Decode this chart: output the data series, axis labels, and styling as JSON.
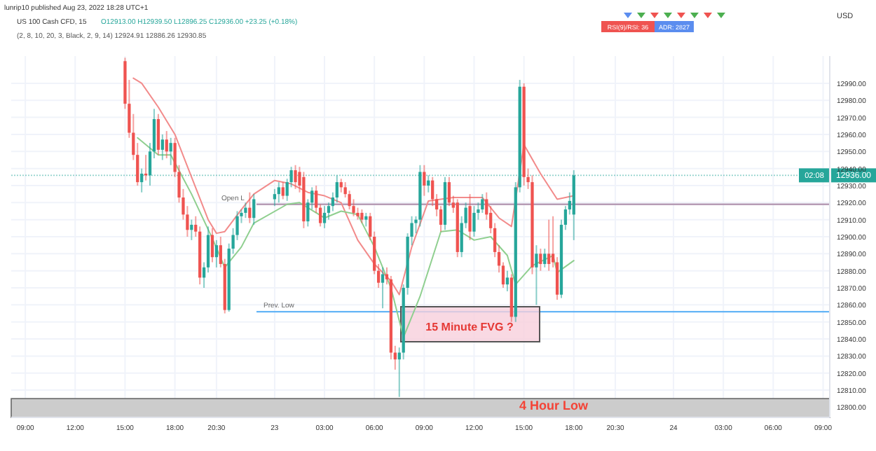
{
  "chart_data": {
    "type": "candlestick",
    "title": "US 100 Cash CFD, 15",
    "subtitle": "O12913.00 H12939.50 L12896.25 C12936.00 +23.25 (+0.18%)",
    "ylabel": "USD",
    "annotations": [
      "lunrip10 published Aug 23, 2022 18:28 UTC+1",
      "(2, 8, 10, 20, 3, Black, 2, 9, 14)  12924.91  12886.26  12930.85",
      "RSI(9)/RSI: 36",
      "ADR: 2827",
      "02:08",
      "15 Minute FVG ?"
    ],
    "x": [
      "2022-08-22T15:00",
      "2022-08-22T15:15",
      "2022-08-22T15:30",
      "2022-08-22T15:45",
      "2022-08-22T16:00",
      "2022-08-22T16:15",
      "2022-08-22T16:30",
      "2022-08-22T16:45",
      "2022-08-22T17:00",
      "2022-08-22T17:15",
      "2022-08-22T17:30",
      "2022-08-22T17:45",
      "2022-08-22T18:00",
      "2022-08-22T18:15",
      "2022-08-22T18:30",
      "2022-08-22T18:45",
      "2022-08-22T19:00",
      "2022-08-22T19:15",
      "2022-08-22T19:30",
      "2022-08-22T19:45",
      "2022-08-22T20:00",
      "2022-08-22T20:15",
      "2022-08-22T20:30",
      "2022-08-22T20:45",
      "2022-08-22T21:00",
      "2022-08-22T21:15",
      "2022-08-22T21:30",
      "2022-08-22T21:45",
      "2022-08-22T22:00",
      "2022-08-22T22:15",
      "2022-08-22T22:30",
      "2022-08-22T22:45",
      "2022-08-23T00:00",
      "2022-08-23T00:15",
      "2022-08-23T00:30",
      "2022-08-23T00:45",
      "2022-08-23T01:00",
      "2022-08-23T01:15",
      "2022-08-23T01:30",
      "2022-08-23T01:45",
      "2022-08-23T02:00",
      "2022-08-23T02:15",
      "2022-08-23T02:30",
      "2022-08-23T02:45",
      "2022-08-23T03:00",
      "2022-08-23T03:15",
      "2022-08-23T03:30",
      "2022-08-23T03:45",
      "2022-08-23T04:00",
      "2022-08-23T04:15",
      "2022-08-23T04:30",
      "2022-08-23T04:45",
      "2022-08-23T05:00",
      "2022-08-23T05:15",
      "2022-08-23T05:30",
      "2022-08-23T05:45",
      "2022-08-23T06:00",
      "2022-08-23T06:15",
      "2022-08-23T06:30",
      "2022-08-23T06:45",
      "2022-08-23T07:00",
      "2022-08-23T07:15",
      "2022-08-23T07:30",
      "2022-08-23T07:45",
      "2022-08-23T08:00",
      "2022-08-23T08:15",
      "2022-08-23T08:30",
      "2022-08-23T08:45",
      "2022-08-23T09:00",
      "2022-08-23T09:15",
      "2022-08-23T09:30",
      "2022-08-23T09:45",
      "2022-08-23T10:00",
      "2022-08-23T10:15",
      "2022-08-23T10:30",
      "2022-08-23T10:45",
      "2022-08-23T11:00",
      "2022-08-23T11:15",
      "2022-08-23T11:30",
      "2022-08-23T11:45",
      "2022-08-23T12:00",
      "2022-08-23T12:15",
      "2022-08-23T12:30",
      "2022-08-23T12:45",
      "2022-08-23T13:00",
      "2022-08-23T13:15",
      "2022-08-23T13:30",
      "2022-08-23T13:45",
      "2022-08-23T14:00",
      "2022-08-23T14:15",
      "2022-08-23T14:30",
      "2022-08-23T14:45",
      "2022-08-23T15:00",
      "2022-08-23T15:15",
      "2022-08-23T15:30",
      "2022-08-23T15:45",
      "2022-08-23T16:00",
      "2022-08-23T16:15",
      "2022-08-23T16:30",
      "2022-08-23T16:45",
      "2022-08-23T17:00",
      "2022-08-23T17:15",
      "2022-08-23T17:30",
      "2022-08-23T17:45",
      "2022-08-23T18:00"
    ],
    "ohlc": [
      [
        13003,
        13005,
        12975,
        12978
      ],
      [
        12978,
        12992,
        12958,
        12961
      ],
      [
        12961,
        12972,
        12945,
        12948
      ],
      [
        12948,
        12955,
        12930,
        12932
      ],
      [
        12932,
        12940,
        12926,
        12937
      ],
      [
        12937,
        12948,
        12933,
        12936
      ],
      [
        12936,
        12955,
        12930,
        12950
      ],
      [
        12950,
        12975,
        12946,
        12969
      ],
      [
        12969,
        12972,
        12948,
        12951
      ],
      [
        12951,
        12960,
        12945,
        12957
      ],
      [
        12957,
        12962,
        12946,
        12950
      ],
      [
        12950,
        12958,
        12942,
        12955
      ],
      [
        12955,
        12958,
        12935,
        12938
      ],
      [
        12938,
        12942,
        12920,
        12923
      ],
      [
        12923,
        12928,
        12910,
        12913
      ],
      [
        12913,
        12918,
        12900,
        12904
      ],
      [
        12904,
        12910,
        12898,
        12907
      ],
      [
        12907,
        12912,
        12900,
        12903
      ],
      [
        12903,
        12906,
        12872,
        12876
      ],
      [
        12876,
        12885,
        12870,
        12882
      ],
      [
        12882,
        12906,
        12879,
        12901
      ],
      [
        12901,
        12905,
        12885,
        12888
      ],
      [
        12888,
        12898,
        12882,
        12895
      ],
      [
        12895,
        12900,
        12882,
        12884
      ],
      [
        12884,
        12887,
        12855,
        12857
      ],
      [
        12857,
        12896,
        12856,
        12893
      ],
      [
        12893,
        12905,
        12890,
        12901
      ],
      [
        12901,
        12915,
        12898,
        12912
      ],
      [
        12912,
        12916,
        12908,
        12914
      ],
      [
        12914,
        12920,
        12911,
        12917
      ],
      [
        12917,
        12926,
        12908,
        12911
      ],
      [
        12911,
        12925,
        12907,
        12922
      ],
      [
        12922,
        12928,
        12918,
        12925
      ],
      [
        12925,
        12932,
        12920,
        12929
      ],
      [
        12929,
        12932,
        12922,
        12924
      ],
      [
        12924,
        12934,
        12921,
        12932
      ],
      [
        12932,
        12941,
        12929,
        12939
      ],
      [
        12939,
        12942,
        12928,
        12932
      ],
      [
        12938,
        12941,
        12926,
        12930
      ],
      [
        12935,
        12938,
        12905,
        12909
      ],
      [
        12909,
        12922,
        12906,
        12920
      ],
      [
        12920,
        12929,
        12916,
        12927
      ],
      [
        12927,
        12930,
        12914,
        12917
      ],
      [
        12917,
        12919,
        12906,
        12908
      ],
      [
        12908,
        12918,
        12905,
        12914
      ],
      [
        12914,
        12920,
        12910,
        12918
      ],
      [
        12918,
        12926,
        12915,
        12923
      ],
      [
        12923,
        12936,
        12920,
        12932
      ],
      [
        12932,
        12934,
        12926,
        12929
      ],
      [
        12929,
        12932,
        12923,
        12925
      ],
      [
        12925,
        12927,
        12916,
        12918
      ],
      [
        12918,
        12922,
        12912,
        12914
      ],
      [
        12914,
        12917,
        12910,
        12912
      ],
      [
        12914,
        12916,
        12908,
        12910
      ],
      [
        12910,
        12914,
        12906,
        12912
      ],
      [
        12912,
        12914,
        12898,
        12900
      ],
      [
        12900,
        12903,
        12878,
        12880
      ],
      [
        12880,
        12884,
        12870,
        12873
      ],
      [
        12873,
        12882,
        12858,
        12878
      ],
      [
        12878,
        12882,
        12872,
        12875
      ],
      [
        12875,
        12877,
        12828,
        12832
      ],
      [
        12832,
        12836,
        12822,
        12828
      ],
      [
        12828,
        12835,
        12806,
        12832
      ],
      [
        12832,
        12872,
        12828,
        12870
      ],
      [
        12870,
        12902,
        12866,
        12900
      ],
      [
        12900,
        12912,
        12895,
        12908
      ],
      [
        12908,
        12912,
        12902,
        12910
      ],
      [
        12910,
        12942,
        12906,
        12938
      ],
      [
        12938,
        12942,
        12924,
        12930
      ],
      [
        12930,
        12936,
        12926,
        12933
      ],
      [
        12933,
        12935,
        12918,
        12922
      ],
      [
        12922,
        12925,
        12912,
        12916
      ],
      [
        12916,
        12918,
        12903,
        12907
      ],
      [
        12907,
        12935,
        12904,
        12932
      ],
      [
        12932,
        12935,
        12918,
        12920
      ],
      [
        12920,
        12924,
        12914,
        12917
      ],
      [
        12920,
        12922,
        12888,
        12891
      ],
      [
        12891,
        12912,
        12888,
        12908
      ],
      [
        12908,
        12920,
        12905,
        12917
      ],
      [
        12918,
        12925,
        12898,
        12903
      ],
      [
        12903,
        12918,
        12900,
        12914
      ],
      [
        12914,
        12920,
        12910,
        12916
      ],
      [
        12916,
        12925,
        12914,
        12922
      ],
      [
        12922,
        12926,
        12910,
        12913
      ],
      [
        12914,
        12918,
        12902,
        12905
      ],
      [
        12905,
        12908,
        12888,
        12891
      ],
      [
        12891,
        12895,
        12879,
        12883
      ],
      [
        12883,
        12885,
        12870,
        12872
      ],
      [
        12872,
        12880,
        12868,
        12876
      ],
      [
        12876,
        12878,
        12850,
        12853
      ],
      [
        12853,
        12932,
        12850,
        12929
      ],
      [
        12929,
        12992,
        12926,
        12988
      ],
      [
        12988,
        12990,
        12930,
        12935
      ],
      [
        12935,
        12940,
        12928,
        12932
      ],
      [
        12932,
        12936,
        12878,
        12882
      ],
      [
        12882,
        12895,
        12860,
        12890
      ],
      [
        12890,
        12893,
        12880,
        12884
      ],
      [
        12884,
        12893,
        12882,
        12890
      ],
      [
        12890,
        12910,
        12880,
        12884
      ],
      [
        12890,
        12912,
        12882,
        12885
      ],
      [
        12885,
        12888,
        12863,
        12866
      ],
      [
        12866,
        12910,
        12864,
        12907
      ],
      [
        12907,
        12918,
        12904,
        12916
      ],
      [
        12916,
        12926,
        12913,
        12921
      ],
      [
        12913,
        12939,
        12898,
        12936
      ]
    ],
    "series": [
      {
        "type": "line",
        "color": "#f28b8b",
        "x": [
          "2022-08-22T15:30",
          "2022-08-22T16:00",
          "2022-08-22T17:00",
          "2022-08-22T18:00",
          "2022-08-22T19:00",
          "2022-08-22T20:00",
          "2022-08-22T20:30",
          "2022-08-22T21:00",
          "2022-08-22T22:00",
          "2022-08-22T22:45",
          "2022-08-23T00:00",
          "2022-08-23T01:00",
          "2022-08-23T02:00",
          "2022-08-23T03:00",
          "2022-08-23T04:00",
          "2022-08-23T05:00",
          "2022-08-23T06:00",
          "2022-08-23T07:00",
          "2022-08-23T07:30",
          "2022-08-23T08:15",
          "2022-08-23T09:15",
          "2022-08-23T10:45",
          "2022-08-23T12:30",
          "2022-08-23T13:30",
          "2022-08-23T14:15",
          "2022-08-23T15:00",
          "2022-08-23T16:00",
          "2022-08-23T17:00",
          "2022-08-23T18:00"
        ],
        "values": [
          12993,
          12990,
          12976,
          12960,
          12935,
          12910,
          12902,
          12903,
          12916,
          12925,
          12933,
          12931,
          12926,
          12924,
          12920,
          12898,
          12884,
          12874,
          12866,
          12894,
          12921,
          12923,
          12923,
          12911,
          12906,
          12954,
          12937,
          12922,
          12924
        ]
      },
      {
        "type": "line",
        "color": "#8fcf8f",
        "x": [
          "2022-08-22T15:45",
          "2022-08-22T17:00",
          "2022-08-22T17:45",
          "2022-08-22T19:00",
          "2022-08-22T20:15",
          "2022-08-22T21:00",
          "2022-08-22T22:00",
          "2022-08-22T22:45",
          "2022-08-23T00:45",
          "2022-08-23T01:30",
          "2022-08-23T03:00",
          "2022-08-23T04:00",
          "2022-08-23T05:00",
          "2022-08-23T06:00",
          "2022-08-23T07:00",
          "2022-08-23T07:45",
          "2022-08-23T08:45",
          "2022-08-23T10:00",
          "2022-08-23T11:00",
          "2022-08-23T12:00",
          "2022-08-23T13:00",
          "2022-08-23T14:00",
          "2022-08-23T14:30",
          "2022-08-23T15:30",
          "2022-08-23T16:45",
          "2022-08-23T17:00",
          "2022-08-23T18:00"
        ],
        "values": [
          12958,
          12948,
          12948,
          12925,
          12899,
          12882,
          12894,
          12908,
          12919,
          12920,
          12911,
          12915,
          12913,
          12894,
          12870,
          12841,
          12865,
          12903,
          12904,
          12898,
          12900,
          12889,
          12872,
          12883,
          12889,
          12879,
          12886
        ]
      }
    ],
    "ref_lines": [
      {
        "axis": "y",
        "value": 12919,
        "label": "Open L",
        "color": "#b79cb5"
      },
      {
        "axis": "y",
        "value": 12856,
        "label": "Prev. Low",
        "color": "#64b5f6"
      },
      {
        "axis": "y",
        "value": 12936,
        "label": "12936.00",
        "color": "#26a69a",
        "line_style": "dotted"
      }
    ],
    "bands": [
      {
        "axis": "y",
        "from": 12794,
        "to": 12805,
        "label": "4 Hour Low",
        "color": "#cccccc"
      }
    ],
    "xlim": [
      "2022-08-22T08:09",
      "2022-08-24T09:24"
    ],
    "xticks": [
      {
        "value": "2022-08-22T09:00",
        "label": "09:00"
      },
      {
        "value": "2022-08-22T12:00",
        "label": "12:00"
      },
      {
        "value": "2022-08-22T15:00",
        "label": "15:00"
      },
      {
        "value": "2022-08-22T18:00",
        "label": "18:00"
      },
      {
        "value": "2022-08-22T20:30",
        "label": "20:30"
      },
      {
        "value": "2022-08-23T00:00",
        "label": "23"
      },
      {
        "value": "2022-08-23T03:00",
        "label": "03:00"
      },
      {
        "value": "2022-08-23T06:00",
        "label": "06:00"
      },
      {
        "value": "2022-08-23T09:00",
        "label": "09:00"
      },
      {
        "value": "2022-08-23T12:00",
        "label": "12:00"
      },
      {
        "value": "2022-08-23T15:00",
        "label": "15:00"
      },
      {
        "value": "2022-08-23T18:00",
        "label": "18:00"
      },
      {
        "value": "2022-08-23T20:30",
        "label": "20:30"
      },
      {
        "value": "2022-08-24T00:00",
        "label": "24"
      },
      {
        "value": "2022-08-24T03:00",
        "label": "03:00"
      },
      {
        "value": "2022-08-24T06:00",
        "label": "06:00"
      },
      {
        "value": "2022-08-24T09:00",
        "label": "09:00"
      }
    ],
    "ylim": [
      12794,
      13006
    ],
    "yticks": [
      {
        "value": 12800,
        "label": "12800.00"
      },
      {
        "value": 12810,
        "label": "12810.00"
      },
      {
        "value": 12820,
        "label": "12820.00"
      },
      {
        "value": 12830,
        "label": "12830.00"
      },
      {
        "value": 12840,
        "label": "12840.00"
      },
      {
        "value": 12850,
        "label": "12850.00"
      },
      {
        "value": 12860,
        "label": "12860.00"
      },
      {
        "value": 12870,
        "label": "12870.00"
      },
      {
        "value": 12880,
        "label": "12880.00"
      },
      {
        "value": 12890,
        "label": "12890.00"
      },
      {
        "value": 12900,
        "label": "12900.00"
      },
      {
        "value": 12910,
        "label": "12910.00"
      },
      {
        "value": 12920,
        "label": "12920.00"
      },
      {
        "value": 12930,
        "label": "12930.00"
      },
      {
        "value": 12940,
        "label": "12940.00"
      },
      {
        "value": 12950,
        "label": "12950.00"
      },
      {
        "value": 12960,
        "label": "12960.00"
      },
      {
        "value": 12970,
        "label": "12970.00"
      },
      {
        "value": 12980,
        "label": "12980.00"
      },
      {
        "value": 12990,
        "label": "12990.00"
      }
    ],
    "grid": true
  }
}
